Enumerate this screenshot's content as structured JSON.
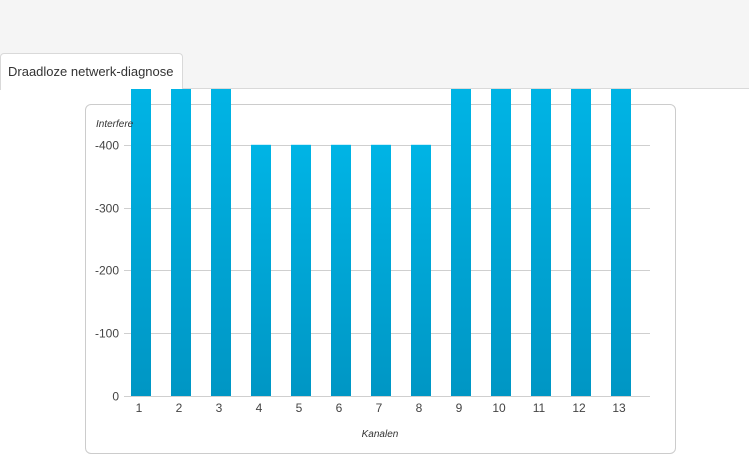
{
  "tabs": [
    {
      "label": "Draadloze netwerk-diagnose",
      "active": true
    }
  ],
  "chart_data": {
    "type": "bar",
    "xlabel": "Kanalen",
    "ylabel": "Interfere",
    "categories": [
      "1",
      "2",
      "3",
      "4",
      "5",
      "6",
      "7",
      "8",
      "9",
      "10",
      "11",
      "12",
      "13"
    ],
    "values": [
      -490,
      -490,
      -490,
      -400,
      -400,
      -400,
      -400,
      -400,
      -490,
      -490,
      -490,
      -490,
      -490
    ],
    "yticks": [
      0,
      -100,
      -200,
      -300,
      -400
    ],
    "ylim": [
      0,
      -490
    ],
    "grid": true,
    "colors": {
      "bar_top": "#00b4e5",
      "bar_bottom": "#0096c4",
      "grid": "#cfcfcf"
    }
  }
}
